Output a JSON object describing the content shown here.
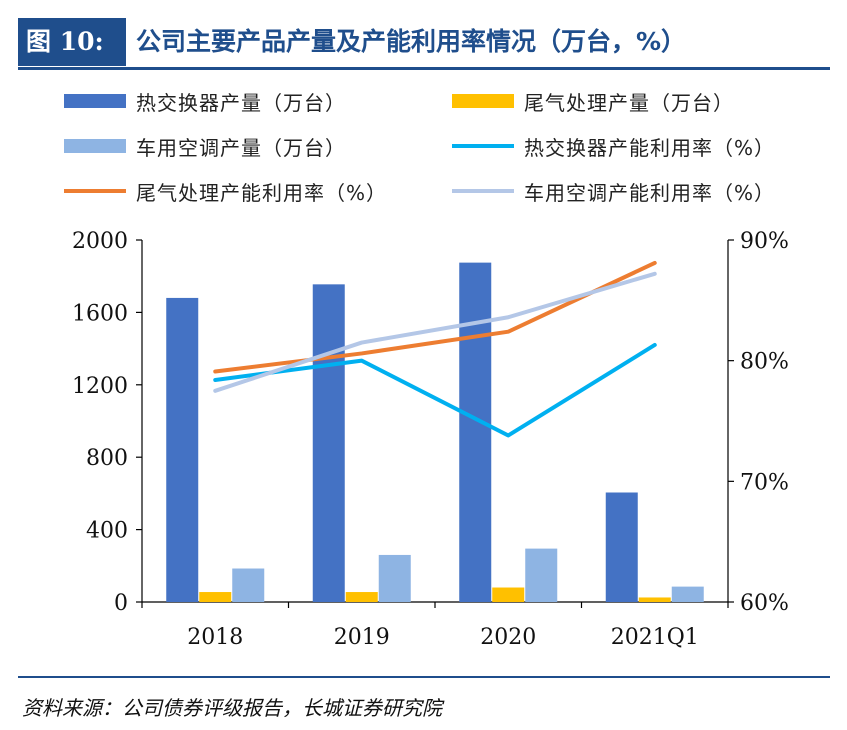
{
  "header": {
    "tag": "图 10:",
    "title": "公司主要产品产量及产能利用率情况（万台，%）"
  },
  "source": "资料来源：公司债券评级报告，长城证券研究院",
  "legend": [
    {
      "key": "hx_output",
      "label": "热交换器产量（万台）",
      "kind": "bar",
      "color": "#4472c4"
    },
    {
      "key": "wq_output",
      "label": "尾气处理产量（万台）",
      "kind": "bar",
      "color": "#ffc000"
    },
    {
      "key": "cy_output",
      "label": "车用空调产量（万台）",
      "kind": "bar",
      "color": "#8eb4e3"
    },
    {
      "key": "hx_util",
      "label": "热交换器产能利用率（%）",
      "kind": "line",
      "color": "#00b0f0"
    },
    {
      "key": "wq_util",
      "label": "尾气处理产能利用率（%）",
      "kind": "line",
      "color": "#ed7d31"
    },
    {
      "key": "cy_util",
      "label": "车用空调产能利用率（%）",
      "kind": "line",
      "color": "#b4c7e7"
    }
  ],
  "chart_data": {
    "type": "bar",
    "categories": [
      "2018",
      "2019",
      "2020",
      "2021Q1"
    ],
    "y_left": {
      "ylim": [
        0,
        2000
      ],
      "ticks": [
        0,
        400,
        800,
        1200,
        1600,
        2000
      ]
    },
    "y_right": {
      "ylim": [
        60,
        90
      ],
      "ticks": [
        60,
        70,
        80,
        90
      ],
      "tick_labels": [
        "60%",
        "70%",
        "80%",
        "90%"
      ]
    },
    "bar_series": [
      {
        "name": "热交换器产量（万台）",
        "values": [
          1680,
          1755,
          1875,
          605
        ],
        "color": "#4472c4"
      },
      {
        "name": "尾气处理产量（万台）",
        "values": [
          55,
          55,
          80,
          25
        ],
        "color": "#ffc000"
      },
      {
        "name": "车用空调产量（万台）",
        "values": [
          185,
          260,
          295,
          85
        ],
        "color": "#8eb4e3"
      }
    ],
    "line_series": [
      {
        "name": "热交换器产能利用率（%）",
        "values": [
          78.4,
          80.0,
          73.8,
          81.3
        ],
        "color": "#00b0f0"
      },
      {
        "name": "尾气处理产能利用率（%）",
        "values": [
          79.1,
          80.6,
          82.4,
          88.1
        ],
        "color": "#ed7d31"
      },
      {
        "name": "车用空调产能利用率（%）",
        "values": [
          77.5,
          81.5,
          83.6,
          87.2
        ],
        "color": "#b4c7e7"
      }
    ],
    "grid": false,
    "legend_position": "top"
  }
}
